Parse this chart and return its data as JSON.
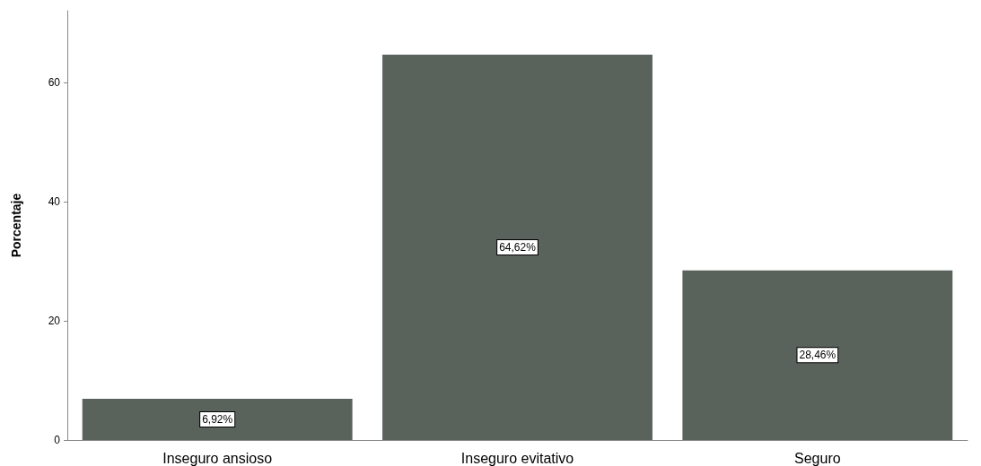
{
  "chart_data": {
    "type": "bar",
    "ylabel": "Porcentaje",
    "categories": [
      "Inseguro ansioso",
      "Inseguro evitativo",
      "Seguro"
    ],
    "values": [
      6.92,
      64.62,
      28.46
    ],
    "color": "#5a625c",
    "value_labels": [
      "6,92%",
      "64,62%",
      "28,46%"
    ],
    "ylim": [
      0,
      72
    ],
    "yticks": [
      0,
      20,
      40,
      60
    ],
    "grid": false
  }
}
